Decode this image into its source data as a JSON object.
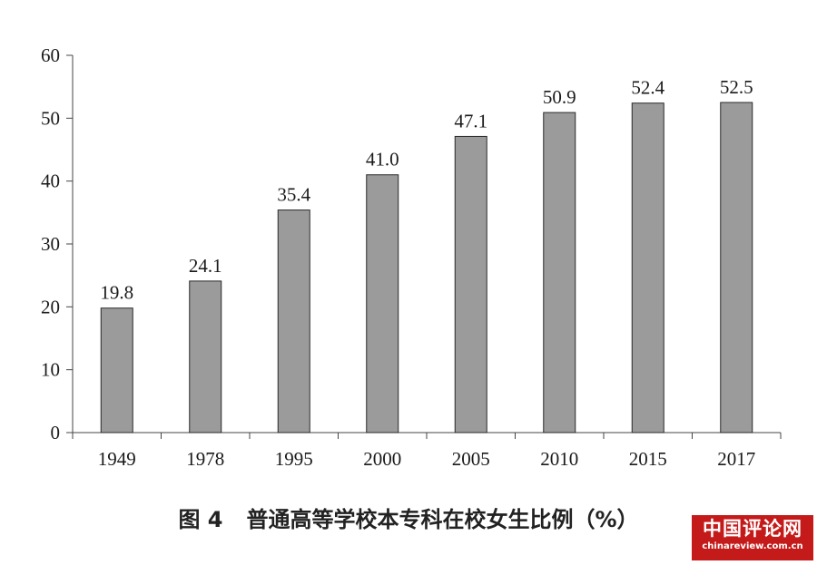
{
  "chart_data": {
    "type": "bar",
    "categories": [
      "1949",
      "1978",
      "1995",
      "2000",
      "2005",
      "2010",
      "2015",
      "2017"
    ],
    "values": [
      19.8,
      24.1,
      35.4,
      41.0,
      47.1,
      50.9,
      52.4,
      52.5
    ],
    "value_labels": [
      "19.8",
      "24.1",
      "35.4",
      "41.0",
      "47.1",
      "50.9",
      "52.4",
      "52.5"
    ],
    "ylim": [
      0,
      60
    ],
    "yticks": [
      "0",
      "10",
      "20",
      "30",
      "40",
      "50",
      "60"
    ],
    "grid": false,
    "legend": "none",
    "bar_color": "#9b9b9b"
  },
  "caption": {
    "figure_number": "图 4",
    "title": "普通高等学校本专科在校女生比例（%）"
  },
  "watermark": {
    "title": "中国评论网",
    "url": "chinareview.com.cn",
    "color": "#c41a1a"
  }
}
